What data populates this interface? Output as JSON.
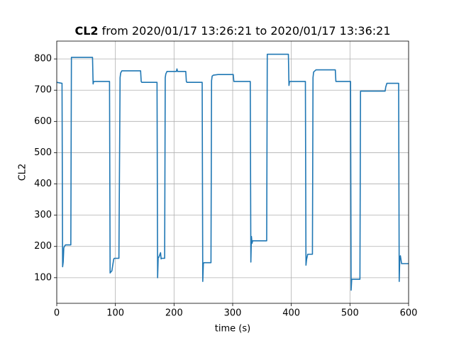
{
  "chart_data": {
    "type": "line",
    "title_bold": "CL2",
    "title": "from 2020/01/17 13:26:21 to 2020/01/17 13:36:21",
    "xlabel": "time (s)",
    "ylabel": "CL2",
    "color": "#1f77b4",
    "grid": true,
    "xlim": [
      0,
      600
    ],
    "ylim": [
      18,
      857
    ],
    "xticks": [
      0,
      100,
      200,
      300,
      400,
      500,
      600
    ],
    "yticks": [
      100,
      200,
      300,
      400,
      500,
      600,
      700,
      800
    ],
    "x": [
      0,
      9,
      10,
      11,
      12,
      13,
      15,
      24,
      25,
      61,
      62,
      63,
      64,
      90,
      91,
      92,
      94,
      97,
      98,
      106,
      108,
      109,
      111,
      143,
      144,
      145,
      171,
      172,
      173,
      174,
      177,
      178,
      179,
      184,
      185,
      186,
      188,
      204,
      205,
      206,
      220,
      221,
      222,
      248,
      249,
      250,
      251,
      263,
      264,
      265,
      267,
      275,
      301,
      302,
      303,
      330,
      331,
      332,
      333,
      334,
      336,
      358,
      359,
      360,
      395,
      396,
      397,
      398,
      424,
      425,
      426,
      428,
      430,
      436,
      437,
      438,
      442,
      450,
      475,
      476,
      477,
      501,
      502,
      503,
      507,
      517,
      518,
      519,
      560,
      561,
      563,
      583,
      584,
      585,
      586,
      588,
      589,
      600
    ],
    "values": [
      725,
      722,
      135,
      150,
      195,
      200,
      205,
      205,
      805,
      805,
      720,
      728,
      728,
      728,
      115,
      118,
      122,
      158,
      162,
      162,
      740,
      755,
      762,
      762,
      728,
      725,
      725,
      100,
      165,
      165,
      180,
      160,
      162,
      162,
      740,
      752,
      760,
      760,
      768,
      760,
      760,
      728,
      725,
      725,
      88,
      145,
      148,
      148,
      730,
      745,
      748,
      750,
      750,
      728,
      728,
      728,
      150,
      232,
      210,
      218,
      218,
      218,
      815,
      815,
      815,
      715,
      728,
      728,
      728,
      140,
      158,
      175,
      175,
      175,
      740,
      758,
      765,
      765,
      765,
      728,
      728,
      728,
      60,
      95,
      95,
      95,
      697,
      697,
      697,
      710,
      722,
      722,
      88,
      165,
      170,
      145,
      145,
      145
    ]
  }
}
